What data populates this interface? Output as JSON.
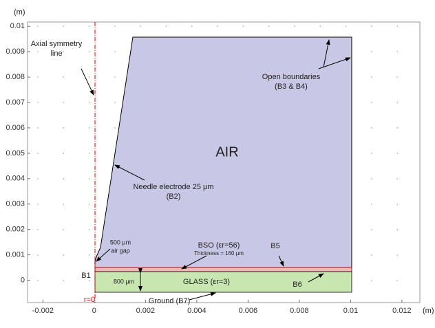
{
  "axes": {
    "x_label": "(m)",
    "y_label": "(m)",
    "xlim": [
      -0.0026,
      0.0127
    ],
    "ylim": [
      -0.00088,
      0.01017
    ],
    "xticks": [
      -0.002,
      0,
      0.002,
      0.004,
      0.006,
      0.008,
      0.01,
      0.012
    ],
    "yticks": [
      0,
      0.001,
      0.002,
      0.003,
      0.004,
      0.005,
      0.006,
      0.007,
      0.008,
      0.009,
      0.01
    ]
  },
  "labels": {
    "axial": [
      "Axial symmetry",
      "line"
    ],
    "open": [
      "Open boundaries",
      "(B3 & B4)"
    ],
    "air": "AIR",
    "needle": [
      "Needle electrode 25 μm",
      "(B2)"
    ],
    "gap": [
      "500 μm",
      "air gap"
    ],
    "bso": "BSO (εr=56)",
    "thickness": "Thickness = 160 μm",
    "b5": "B5",
    "b1": "B1",
    "glass_thickness": "800 μm",
    "glass": "GLASS (εr=3)",
    "b6": "B6",
    "r0": "r=0",
    "ground": "Ground (B7)"
  }
}
